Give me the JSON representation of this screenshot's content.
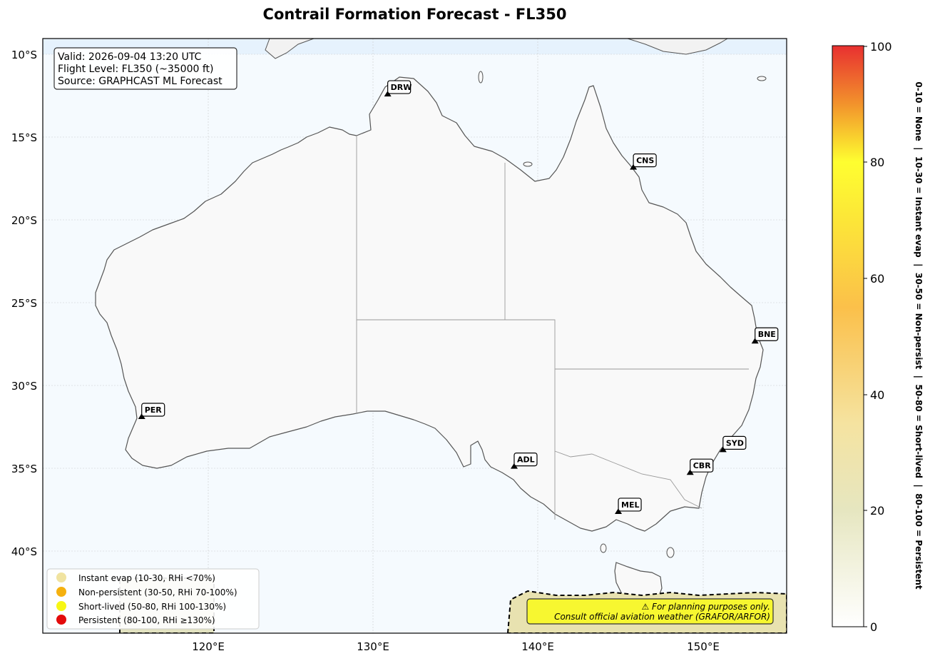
{
  "title": "Contrail Formation Forecast - FL350",
  "info": {
    "valid": "Valid: 2026-09-04 13:20 UTC",
    "flight_level": "Flight Level: FL350 (~35000 ft)",
    "source": "Source: GRAPHCAST ML Forecast"
  },
  "axes": {
    "lat_ticks": [
      "10°S",
      "15°S",
      "20°S",
      "25°S",
      "30°S",
      "35°S",
      "40°S"
    ],
    "lon_ticks": [
      "120°E",
      "130°E",
      "140°E",
      "150°E"
    ]
  },
  "airports": [
    {
      "code": "DRW",
      "lon": 130.87,
      "lat": -12.46
    },
    {
      "code": "CNS",
      "lon": 145.75,
      "lat": -16.88
    },
    {
      "code": "BNE",
      "lon": 153.12,
      "lat": -27.38
    },
    {
      "code": "PER",
      "lon": 115.97,
      "lat": -31.94
    },
    {
      "code": "ADL",
      "lon": 138.53,
      "lat": -34.94
    },
    {
      "code": "SYD",
      "lon": 151.18,
      "lat": -33.94
    },
    {
      "code": "CBR",
      "lon": 149.19,
      "lat": -35.31
    },
    {
      "code": "MEL",
      "lon": 144.84,
      "lat": -37.67
    }
  ],
  "legend": [
    {
      "label": "Instant evap (10-30, RHi <70%)",
      "color": "#f0e3a0"
    },
    {
      "label": "Non-persistent (30-50, RHi 70-100%)",
      "color": "#f5b10f"
    },
    {
      "label": "Short-lived (50-80, RHi 100-130%)",
      "color": "#f7f714"
    },
    {
      "label": "Persistent (80-100, RHi ≥130%)",
      "color": "#e30b0b"
    }
  ],
  "warning": {
    "line1": "⚠ For planning purposes only.",
    "line2": "Consult official aviation weather (GRAFOR/ARFOR)"
  },
  "colorbar": {
    "ticks": [
      "0",
      "20",
      "40",
      "60",
      "80",
      "100"
    ],
    "label": "0-10 = None  |  10-30 = Instant evap  |  30-50 = Non-persist  |  50-80 = Short-lived  |  80-100 = Persistent"
  },
  "colors": {
    "ocean": "#f5fafe",
    "land": "#f9f9f9",
    "coast": "#555555",
    "warning_bg": "#f7f730"
  }
}
